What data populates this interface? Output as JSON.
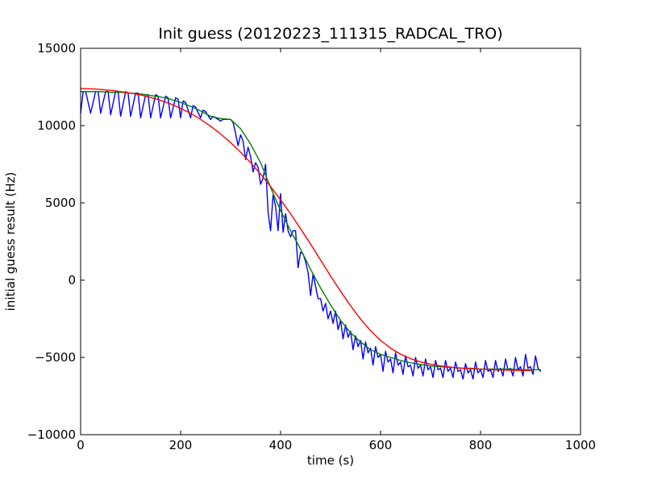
{
  "chart_data": {
    "type": "line",
    "title": "Init guess (20120223_111315_RADCAL_TRO)",
    "xlabel": "time (s)",
    "ylabel": "initial guess result (Hz)",
    "xlim": [
      0,
      1000
    ],
    "ylim": [
      -10000,
      15000
    ],
    "xticks": [
      0,
      200,
      400,
      600,
      800,
      1000
    ],
    "yticks": [
      -10000,
      -5000,
      0,
      5000,
      10000,
      15000
    ],
    "xtick_labels": [
      "0",
      "200",
      "400",
      "600",
      "800",
      "1000"
    ],
    "ytick_labels": [
      "−10000",
      "−5000",
      "0",
      "5000",
      "10000",
      "15000"
    ],
    "grid": false,
    "legend": "none",
    "series": [
      {
        "color": "#0000ff",
        "x": [
          0,
          5,
          10,
          20,
          30,
          35,
          40,
          50,
          55,
          60,
          70,
          75,
          80,
          90,
          95,
          100,
          110,
          115,
          120,
          130,
          135,
          140,
          150,
          155,
          160,
          170,
          175,
          180,
          190,
          195,
          200,
          205,
          210,
          220,
          225,
          230,
          240,
          245,
          250,
          260,
          265,
          270,
          280,
          285,
          290,
          300,
          305,
          310,
          315,
          320,
          325,
          330,
          335,
          340,
          345,
          350,
          355,
          360,
          365,
          370,
          375,
          380,
          385,
          390,
          395,
          400,
          405,
          410,
          415,
          420,
          425,
          430,
          435,
          440,
          445,
          450,
          455,
          460,
          465,
          470,
          475,
          480,
          485,
          490,
          495,
          500,
          505,
          510,
          515,
          520,
          525,
          530,
          535,
          540,
          545,
          550,
          555,
          560,
          565,
          570,
          575,
          580,
          585,
          590,
          595,
          600,
          605,
          610,
          615,
          620,
          625,
          630,
          635,
          640,
          645,
          650,
          655,
          660,
          665,
          670,
          675,
          680,
          685,
          690,
          695,
          700,
          705,
          710,
          715,
          720,
          725,
          730,
          735,
          740,
          745,
          750,
          755,
          760,
          765,
          770,
          775,
          780,
          785,
          790,
          795,
          800,
          805,
          810,
          815,
          820,
          825,
          830,
          835,
          840,
          845,
          850,
          855,
          860,
          865,
          870,
          875,
          880,
          885,
          890,
          895,
          900,
          905,
          910,
          915,
          920
        ],
        "y": [
          10800,
          12200,
          12200,
          10800,
          12200,
          12200,
          10800,
          12200,
          12200,
          10700,
          12200,
          12200,
          10600,
          12200,
          12100,
          10600,
          12100,
          12100,
          10500,
          12000,
          12000,
          10500,
          12000,
          11900,
          10500,
          11900,
          11800,
          10500,
          11800,
          11700,
          10500,
          11600,
          11500,
          10500,
          11300,
          11200,
          10500,
          11000,
          10900,
          10400,
          10600,
          10500,
          10300,
          10400,
          10400,
          10400,
          10200,
          9500,
          8700,
          9400,
          9000,
          7800,
          8600,
          8000,
          7000,
          7600,
          7300,
          6200,
          6600,
          7500,
          4400,
          3200,
          5500,
          4800,
          3200,
          5600,
          3100,
          4300,
          3200,
          2800,
          3200,
          3200,
          800,
          1800,
          1700,
          1200,
          500,
          -1000,
          400,
          -400,
          -1200,
          -1200,
          -2000,
          -1500,
          -2500,
          -2000,
          -2800,
          -2000,
          -3200,
          -2600,
          -3800,
          -2900,
          -3700,
          -3300,
          -4500,
          -3600,
          -4300,
          -3900,
          -5100,
          -4000,
          -4700,
          -4400,
          -5500,
          -4300,
          -5000,
          -4800,
          -5900,
          -4600,
          -5300,
          -5100,
          -6000,
          -4700,
          -5500,
          -5300,
          -6100,
          -4900,
          -5600,
          -5500,
          -6200,
          -5000,
          -5700,
          -5500,
          -6200,
          -5100,
          -5800,
          -5600,
          -6300,
          -5200,
          -5800,
          -5700,
          -6300,
          -5200,
          -5900,
          -5700,
          -6300,
          -5300,
          -5900,
          -5800,
          -6400,
          -5400,
          -6000,
          -5800,
          -6400,
          -5300,
          -6000,
          -5800,
          -6300,
          -5200,
          -5900,
          -5800,
          -6300,
          -5200,
          -5900,
          -5700,
          -6200,
          -5100,
          -5800,
          -5700,
          -6200,
          -5000,
          -5800,
          -5600,
          -6200,
          -4800,
          -5700,
          -5600,
          -6100,
          -4900,
          -5700,
          -5900
        ]
      },
      {
        "color": "#008000",
        "x": [
          0,
          20,
          40,
          60,
          80,
          100,
          120,
          140,
          160,
          180,
          200,
          220,
          240,
          260,
          280,
          300,
          320,
          340,
          360,
          380,
          400,
          420,
          440,
          460,
          480,
          500,
          520,
          540,
          560,
          580,
          600,
          620,
          640,
          660,
          680,
          700,
          720,
          740,
          760,
          780,
          800,
          820,
          840,
          860,
          880,
          900,
          920
        ],
        "y": [
          12200,
          12200,
          12200,
          12150,
          12150,
          12100,
          12050,
          11950,
          11850,
          11700,
          11500,
          11250,
          10950,
          10600,
          10450,
          10400,
          9800,
          8800,
          7600,
          6000,
          4500,
          3200,
          2000,
          700,
          -500,
          -1600,
          -2600,
          -3400,
          -4000,
          -4500,
          -4800,
          -5000,
          -5200,
          -5350,
          -5450,
          -5550,
          -5600,
          -5650,
          -5700,
          -5700,
          -5750,
          -5750,
          -5750,
          -5750,
          -5800,
          -5800,
          -5800
        ]
      },
      {
        "color": "#ff0000",
        "x": [
          0,
          20,
          40,
          60,
          80,
          100,
          120,
          140,
          160,
          180,
          200,
          220,
          240,
          260,
          280,
          300,
          320,
          340,
          360,
          380,
          400,
          420,
          440,
          460,
          480,
          500,
          520,
          540,
          560,
          580,
          600,
          620,
          640,
          660,
          680,
          700,
          720,
          740,
          760,
          780,
          800,
          820,
          840,
          860,
          880,
          900
        ],
        "y": [
          12400,
          12380,
          12340,
          12280,
          12200,
          12100,
          11980,
          11820,
          11630,
          11400,
          11120,
          10790,
          10400,
          9960,
          9460,
          8900,
          8280,
          7600,
          6860,
          6060,
          5200,
          4290,
          3330,
          2330,
          1300,
          270,
          -720,
          -1660,
          -2520,
          -3270,
          -3900,
          -4400,
          -4790,
          -5080,
          -5290,
          -5440,
          -5550,
          -5630,
          -5690,
          -5730,
          -5760,
          -5790,
          -5810,
          -5830,
          -5840,
          -5850
        ]
      }
    ]
  }
}
